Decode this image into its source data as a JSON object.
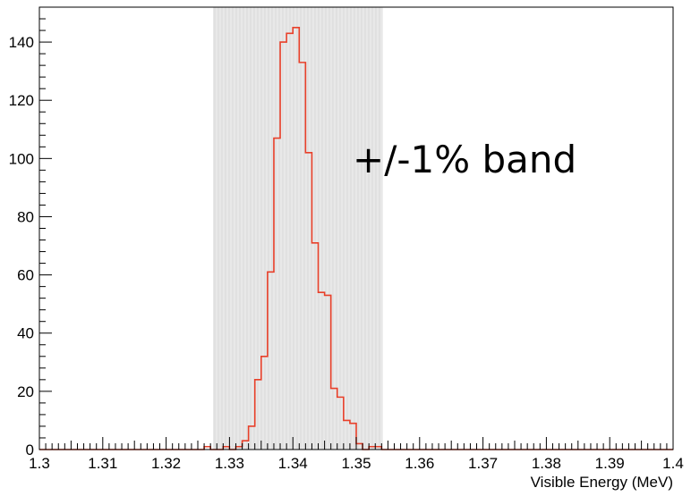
{
  "chart_data": {
    "type": "histogram",
    "title": "",
    "xlabel": "Visible Energy (MeV)",
    "ylabel": "",
    "xlim": [
      1.3,
      1.4
    ],
    "ylim": [
      0,
      152
    ],
    "bin_width": 0.001,
    "x_ticks": [
      "1.3",
      "1.31",
      "1.32",
      "1.33",
      "1.34",
      "1.35",
      "1.36",
      "1.37",
      "1.38",
      "1.39",
      "1.4"
    ],
    "y_ticks": [
      "0",
      "20",
      "40",
      "60",
      "80",
      "100",
      "120",
      "140"
    ],
    "series": [
      {
        "color": "#e8402a",
        "bins": [
          {
            "x": 1.326,
            "y": 1
          },
          {
            "x": 1.329,
            "y": 1
          },
          {
            "x": 1.331,
            "y": 1
          },
          {
            "x": 1.332,
            "y": 3
          },
          {
            "x": 1.333,
            "y": 8
          },
          {
            "x": 1.334,
            "y": 24
          },
          {
            "x": 1.335,
            "y": 32
          },
          {
            "x": 1.336,
            "y": 61
          },
          {
            "x": 1.337,
            "y": 107
          },
          {
            "x": 1.338,
            "y": 140
          },
          {
            "x": 1.339,
            "y": 143
          },
          {
            "x": 1.34,
            "y": 145
          },
          {
            "x": 1.341,
            "y": 133
          },
          {
            "x": 1.342,
            "y": 102
          },
          {
            "x": 1.343,
            "y": 71
          },
          {
            "x": 1.344,
            "y": 54
          },
          {
            "x": 1.345,
            "y": 53
          },
          {
            "x": 1.346,
            "y": 21
          },
          {
            "x": 1.347,
            "y": 18
          },
          {
            "x": 1.348,
            "y": 10
          },
          {
            "x": 1.349,
            "y": 9
          },
          {
            "x": 1.35,
            "y": 2
          },
          {
            "x": 1.352,
            "y": 1
          },
          {
            "x": 1.353,
            "y": 1
          }
        ]
      }
    ],
    "band": {
      "from": 1.3274,
      "to": 1.3542,
      "color": "#e8e8e8"
    },
    "annotation": "+/-1% band",
    "grid": false,
    "legend": "none"
  }
}
